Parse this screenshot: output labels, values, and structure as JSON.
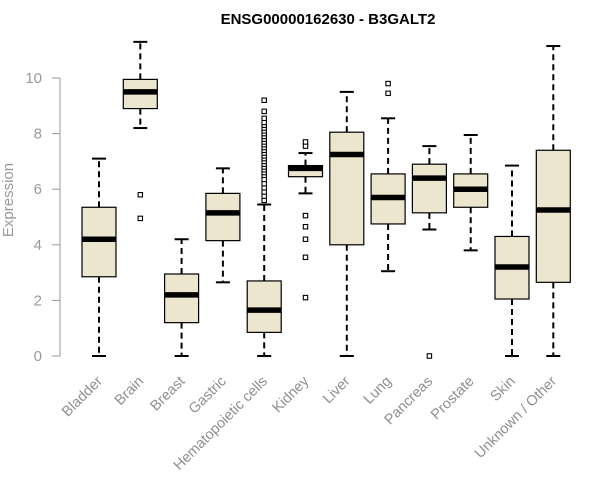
{
  "chart_data": {
    "type": "boxplot",
    "title": "ENSG00000162630 - B3GALT2",
    "xlabel": "",
    "ylabel": "Expression",
    "ylim": [
      0,
      11.2
    ],
    "yticks": [
      0,
      2,
      4,
      6,
      8,
      10
    ],
    "grid": false,
    "box_fill": "#ede6cf",
    "categories": [
      "Bladder",
      "Brain",
      "Breast",
      "Gastric",
      "Hematopoietic cells",
      "Kidney",
      "Liver",
      "Lung",
      "Pancreas",
      "Prostate",
      "Skin",
      "Unknown / Other"
    ],
    "boxes": [
      {
        "name": "Bladder",
        "whisker_low": 0,
        "q1": 2.85,
        "median": 4.2,
        "q3": 5.35,
        "whisker_high": 7.1,
        "outliers": []
      },
      {
        "name": "Brain",
        "whisker_low": 8.2,
        "q1": 8.9,
        "median": 9.5,
        "q3": 9.95,
        "whisker_high": 11.3,
        "outliers": [
          5.8,
          4.95
        ]
      },
      {
        "name": "Breast",
        "whisker_low": 0,
        "q1": 1.2,
        "median": 2.2,
        "q3": 2.95,
        "whisker_high": 4.2,
        "outliers": []
      },
      {
        "name": "Gastric",
        "whisker_low": 2.65,
        "q1": 4.15,
        "median": 5.15,
        "q3": 5.85,
        "whisker_high": 6.75,
        "outliers": []
      },
      {
        "name": "Hematopoietic cells",
        "whisker_low": 0,
        "q1": 0.85,
        "median": 1.65,
        "q3": 2.7,
        "whisker_high": 5.45,
        "outliers": [
          5.6,
          5.75,
          5.9,
          6.05,
          6.2,
          6.35,
          6.5,
          6.6,
          6.7,
          6.8,
          6.9,
          7.0,
          7.1,
          7.2,
          7.3,
          7.4,
          7.5,
          7.6,
          7.7,
          7.8,
          7.9,
          8.0,
          8.1,
          8.2,
          8.3,
          8.4,
          8.55,
          8.8,
          9.2
        ]
      },
      {
        "name": "Kidney",
        "whisker_low": 5.85,
        "q1": 6.45,
        "median": 6.75,
        "q3": 6.85,
        "whisker_high": 7.3,
        "outliers": [
          7.55,
          7.7,
          5.05,
          4.65,
          4.2,
          3.55,
          2.1
        ]
      },
      {
        "name": "Liver",
        "whisker_low": 0,
        "q1": 4.0,
        "median": 7.25,
        "q3": 8.05,
        "whisker_high": 9.5,
        "outliers": []
      },
      {
        "name": "Lung",
        "whisker_low": 3.05,
        "q1": 4.75,
        "median": 5.7,
        "q3": 6.55,
        "whisker_high": 8.55,
        "outliers": [
          9.45,
          9.8
        ]
      },
      {
        "name": "Pancreas",
        "whisker_low": 4.55,
        "q1": 5.15,
        "median": 6.4,
        "q3": 6.9,
        "whisker_high": 7.55,
        "outliers": [
          0
        ]
      },
      {
        "name": "Prostate",
        "whisker_low": 3.8,
        "q1": 5.35,
        "median": 6.0,
        "q3": 6.55,
        "whisker_high": 7.95,
        "outliers": []
      },
      {
        "name": "Skin",
        "whisker_low": 0,
        "q1": 2.05,
        "median": 3.2,
        "q3": 4.3,
        "whisker_high": 6.85,
        "outliers": []
      },
      {
        "name": "Unknown / Other",
        "whisker_low": 0,
        "q1": 2.65,
        "median": 5.25,
        "q3": 7.4,
        "whisker_high": 11.15,
        "outliers": []
      }
    ]
  }
}
